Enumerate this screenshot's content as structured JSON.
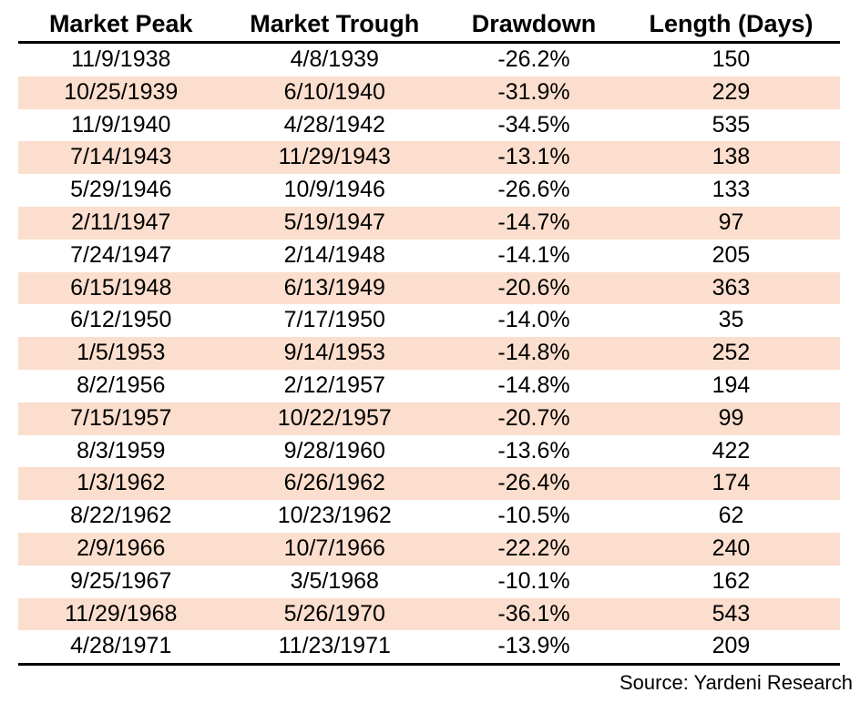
{
  "chart_data": {
    "type": "table",
    "title": "",
    "columns": [
      "Market Peak",
      "Market Trough",
      "Drawdown",
      "Length (Days)"
    ],
    "rows": [
      [
        "11/9/1938",
        "4/8/1939",
        "-26.2%",
        "150"
      ],
      [
        "10/25/1939",
        "6/10/1940",
        "-31.9%",
        "229"
      ],
      [
        "11/9/1940",
        "4/28/1942",
        "-34.5%",
        "535"
      ],
      [
        "7/14/1943",
        "11/29/1943",
        "-13.1%",
        "138"
      ],
      [
        "5/29/1946",
        "10/9/1946",
        "-26.6%",
        "133"
      ],
      [
        "2/11/1947",
        "5/19/1947",
        "-14.7%",
        "97"
      ],
      [
        "7/24/1947",
        "2/14/1948",
        "-14.1%",
        "205"
      ],
      [
        "6/15/1948",
        "6/13/1949",
        "-20.6%",
        "363"
      ],
      [
        "6/12/1950",
        "7/17/1950",
        "-14.0%",
        "35"
      ],
      [
        "1/5/1953",
        "9/14/1953",
        "-14.8%",
        "252"
      ],
      [
        "8/2/1956",
        "2/12/1957",
        "-14.8%",
        "194"
      ],
      [
        "7/15/1957",
        "10/22/1957",
        "-20.7%",
        "99"
      ],
      [
        "8/3/1959",
        "9/28/1960",
        "-13.6%",
        "422"
      ],
      [
        "1/3/1962",
        "6/26/1962",
        "-26.4%",
        "174"
      ],
      [
        "8/22/1962",
        "10/23/1962",
        "-10.5%",
        "62"
      ],
      [
        "2/9/1966",
        "10/7/1966",
        "-22.2%",
        "240"
      ],
      [
        "9/25/1967",
        "3/5/1968",
        "-10.1%",
        "162"
      ],
      [
        "11/29/1968",
        "5/26/1970",
        "-36.1%",
        "543"
      ],
      [
        "4/28/1971",
        "11/23/1971",
        "-13.9%",
        "209"
      ]
    ],
    "source": "Source: Yardeni Research",
    "layout": {
      "striped": true,
      "striped_rows": "every second data row starting with row 2",
      "grid": "horizontal rules under header and below last row only",
      "alignment": "all cells centered, source right-aligned"
    }
  },
  "colors": {
    "stripe": "#fbdecd",
    "text": "#000000",
    "rule": "#000000",
    "background": "#ffffff"
  }
}
